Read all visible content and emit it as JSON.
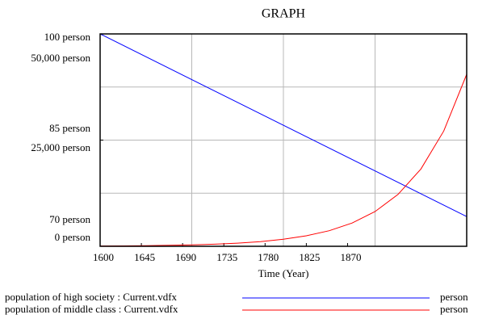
{
  "chart_data": {
    "type": "line",
    "title": "GRAPH",
    "x_label": "Time (Year)",
    "xlim": [
      1600,
      2000
    ],
    "xticks": [
      1600,
      1645,
      1690,
      1735,
      1780,
      1825,
      1870
    ],
    "ylim": [
      70,
      100
    ],
    "yticks": [
      {
        "value": 70,
        "label": "70  person"
      },
      {
        "value": 85,
        "label": "85  person"
      },
      {
        "value": 100,
        "label": "100  person"
      }
    ],
    "y2lim": [
      0,
      50000
    ],
    "y2ticks": [
      {
        "value": 0,
        "label": "0  person"
      },
      {
        "value": 25000,
        "label": "25,000  person"
      },
      {
        "value": 50000,
        "label": "50,000  person"
      }
    ],
    "grid": true,
    "series": [
      {
        "name": "population of high society : Current.vdfx",
        "unit": "person",
        "color": "#0000ff",
        "x": [
          1600,
          2000
        ],
        "values": [
          100,
          74.2
        ]
      },
      {
        "name": "population of middle class : Current.vdfx",
        "unit": "person",
        "color": "#ff0000",
        "axis": "y2",
        "x": [
          1600,
          1625,
          1650,
          1675,
          1700,
          1725,
          1750,
          1775,
          1800,
          1825,
          1850,
          1875,
          1900,
          1925,
          1950,
          1975,
          2000
        ],
        "values": [
          67,
          100,
          150,
          224,
          333,
          497,
          742,
          1107,
          1651,
          2463,
          3674,
          5481,
          8177,
          12198,
          18197,
          27147,
          40500
        ]
      }
    ]
  }
}
